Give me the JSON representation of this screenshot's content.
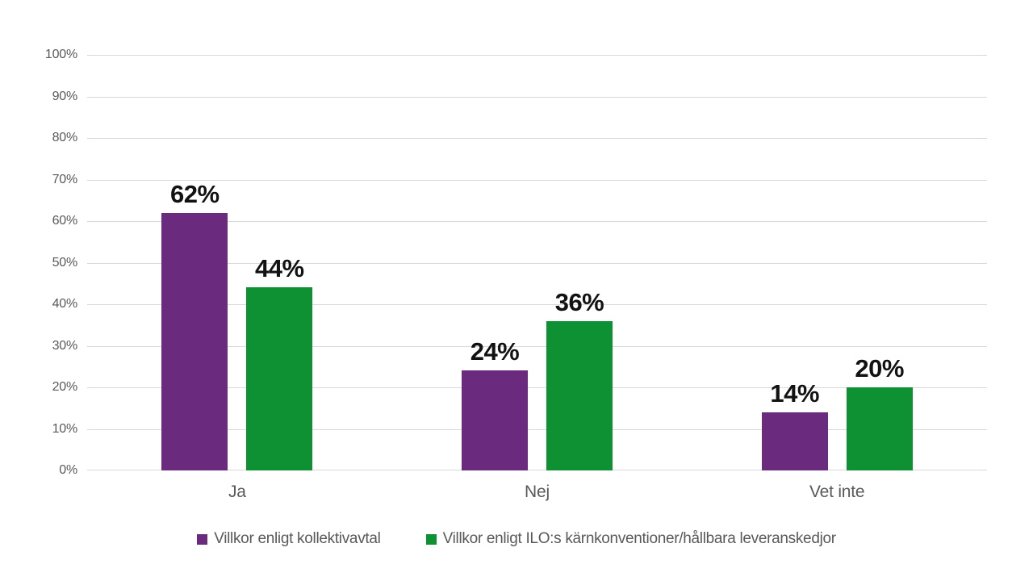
{
  "chart_data": {
    "type": "bar",
    "categories": [
      "Ja",
      "Nej",
      "Vet inte"
    ],
    "series": [
      {
        "name": "Villkor enligt kollektivavtal",
        "color": "#6A2A7D",
        "values": [
          62,
          24,
          14
        ],
        "labels": [
          "62%",
          "24%",
          "14%"
        ]
      },
      {
        "name": "Villkor enligt ILO:s kärnkonventioner/hållbara leveranskedjor",
        "color": "#0E9132",
        "values": [
          44,
          36,
          20
        ],
        "labels": [
          "44%",
          "36%",
          "20%"
        ]
      }
    ],
    "y_axis": {
      "ticks": [
        "0%",
        "10%",
        "20%",
        "30%",
        "40%",
        "50%",
        "60%",
        "70%",
        "80%",
        "90%",
        "100%"
      ],
      "min": 0,
      "max": 100,
      "step": 10
    },
    "xlabel": "",
    "ylabel": "",
    "title": "",
    "grid": true,
    "legend_position": "bottom",
    "colors": {
      "background": "#FFFFFF",
      "gridline": "#D9D9D9",
      "axis_text": "#595959",
      "data_label": "#121212"
    }
  }
}
